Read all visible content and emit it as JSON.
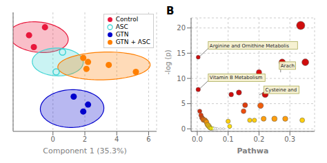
{
  "chart_data": [
    {
      "type": "scatter",
      "xlabel": "Component 1 (35.3%)",
      "xlim": [
        -2.5,
        6.5
      ],
      "ylim": [
        -6.5,
        5.5
      ],
      "xticks": [
        0,
        2,
        4,
        6
      ],
      "yticks": [],
      "grid": true,
      "legend": "upper right",
      "tick_labels": "x",
      "series": [
        {
          "name": "Control",
          "color": "#e8183c",
          "marker": "circle",
          "x": [
            -1.5,
            -1.2,
            -0.5
          ],
          "values": [
            3.2,
            2.0,
            4.0
          ],
          "ellipse": {
            "cx": -0.9,
            "cy": 3.0,
            "width": 3.8,
            "height": 3.0,
            "angle": -20
          }
        },
        {
          "name": "ASC",
          "color": "#40d4d4",
          "marker": "open",
          "x": [
            0.6,
            0.2
          ],
          "values": [
            1.5,
            -0.5
          ],
          "ellipse": {
            "cx": 0.3,
            "cy": 0.5,
            "width": 3.2,
            "height": 2.8,
            "angle": -5
          }
        },
        {
          "name": "GTN",
          "color": "#0000cc",
          "marker": "circle",
          "x": [
            1.3,
            2.2,
            1.9
          ],
          "values": [
            -3.0,
            -3.8,
            -4.5
          ],
          "ellipse": {
            "cx": 1.2,
            "cy": -4.2,
            "width": 4.0,
            "height": 3.8,
            "angle": 15
          }
        },
        {
          "name": "GTN + ASC",
          "color": "#ff7f00",
          "marker": "circle",
          "x": [
            1.9,
            2.2,
            2.1,
            3.5,
            5.2
          ],
          "values": [
            0.9,
            0.5,
            -0.2,
            0.2,
            -0.5
          ],
          "ellipse": {
            "cx": 3.2,
            "cy": 0.1,
            "width": 5.8,
            "height": 2.8,
            "angle": 3
          }
        }
      ]
    },
    {
      "type": "bubble",
      "title": "B",
      "xlabel": "Pathwa",
      "ylabel": "-log (p)",
      "xlim": [
        -0.02,
        0.38
      ],
      "ylim": [
        -0.5,
        22
      ],
      "xticks": [
        {
          "value": 0.0,
          "label": "0.0"
        },
        0.1,
        0.2,
        0.3
      ],
      "yticks": [
        0,
        5,
        10,
        15,
        20
      ],
      "grid": true,
      "x": [
        0.003,
        0.003,
        0.008,
        0.012,
        0.015,
        0.018,
        0.02,
        0.025,
        0.028,
        0.03,
        0.032,
        0.035,
        0.038,
        0.04,
        0.042,
        0.045,
        0.05,
        0.055,
        0.06,
        0.065,
        0.075,
        0.085,
        0.1,
        0.105,
        0.11,
        0.135,
        0.15,
        0.155,
        0.17,
        0.185,
        0.2,
        0.205,
        0.215,
        0.22,
        0.25,
        0.275,
        0.285,
        0.335,
        0.34,
        0.35
      ],
      "values": [
        14.2,
        7.8,
        3.5,
        2.7,
        2.2,
        2.0,
        1.8,
        1.7,
        1.5,
        1.3,
        0.9,
        0.7,
        0.5,
        0.3,
        0.15,
        0.1,
        0.08,
        0.05,
        0.02,
        0.01,
        0.01,
        0.01,
        1.5,
        0.5,
        6.8,
        7.2,
        3.5,
        4.7,
        1.7,
        1.7,
        11.2,
        4.6,
        2.0,
        6.8,
        2.0,
        13.2,
        2.0,
        20.5,
        1.7,
        13.2
      ],
      "sizes": [
        40,
        50,
        45,
        50,
        55,
        50,
        65,
        60,
        55,
        60,
        55,
        65,
        60,
        50,
        45,
        40,
        30,
        22,
        18,
        14,
        12,
        12,
        50,
        45,
        55,
        70,
        60,
        65,
        50,
        50,
        75,
        85,
        65,
        95,
        75,
        110,
        70,
        180,
        60,
        120
      ],
      "colors": [
        "#cc0000",
        "#cc0000",
        "#cc2200",
        "#dd3300",
        "#dd4400",
        "#ee5500",
        "#ee6600",
        "#ee7700",
        "#ee8800",
        "#ff9900",
        "#ffaa00",
        "#ffbb00",
        "#ffcc00",
        "#ffcc00",
        "#ffdd00",
        "#ffee00",
        "#ffff00",
        "#ffffff",
        "#ffffff",
        "#ffffff",
        "#ffffff",
        "#ffffff",
        "#ffcc00",
        "#ffdd00",
        "#cc0000",
        "#cc0000",
        "#ee4400",
        "#dd3300",
        "#ffcc00",
        "#ffcc00",
        "#dd0000",
        "#ee5500",
        "#ff9900",
        "#cc0000",
        "#ff9900",
        "#cc0000",
        "#ff9900",
        "#cc0000",
        "#ffcc00",
        "#cc0000"
      ],
      "annotations": [
        {
          "text": "Arginine and Ornithine Metabolis",
          "x": 0.005,
          "y": 14.2,
          "text_x": 0.04,
          "text_y": 16.2
        },
        {
          "text": "Arach",
          "x": 0.27,
          "y": 11.2,
          "text_x": 0.27,
          "text_y": 12.2
        },
        {
          "text": "Vitamin B Metabolism",
          "x": 0.005,
          "y": 7.8,
          "text_x": 0.04,
          "text_y": 9.8
        },
        {
          "text": "Cysteine and",
          "x": 0.2,
          "y": 6.7,
          "text_x": 0.22,
          "text_y": 7.4
        }
      ]
    }
  ]
}
